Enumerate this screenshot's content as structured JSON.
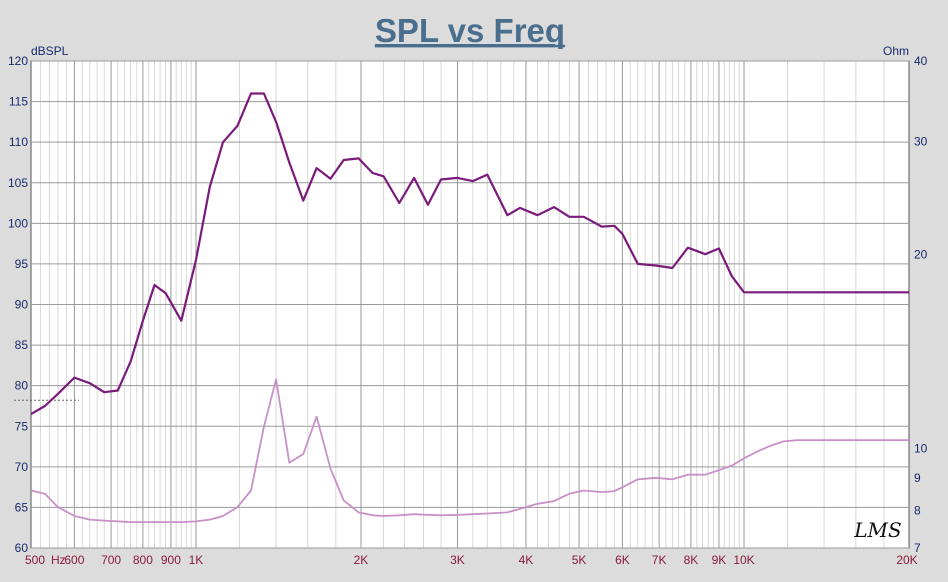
{
  "chart_data": {
    "type": "line",
    "title": "SPL vs Freq",
    "ylabel_left": "dBSPL",
    "ylabel_right": "Ohm",
    "x_unit_label": "Hz",
    "x_scale": "log",
    "xlim": [
      500,
      20000
    ],
    "ylim_left": [
      60,
      120
    ],
    "ylim_right": [
      7,
      40
    ],
    "y_scale_right": "log",
    "grid": true,
    "logo_text": "LMS",
    "x_ticks": [
      {
        "value": 500,
        "label": "500"
      },
      {
        "value": 600,
        "label": "600"
      },
      {
        "value": 700,
        "label": "700"
      },
      {
        "value": 800,
        "label": "800"
      },
      {
        "value": 900,
        "label": "900"
      },
      {
        "value": 1000,
        "label": "1K"
      },
      {
        "value": 2000,
        "label": "2K"
      },
      {
        "value": 3000,
        "label": "3K"
      },
      {
        "value": 4000,
        "label": "4K"
      },
      {
        "value": 5000,
        "label": "5K"
      },
      {
        "value": 6000,
        "label": "6K"
      },
      {
        "value": 7000,
        "label": "7K"
      },
      {
        "value": 8000,
        "label": "8K"
      },
      {
        "value": 9000,
        "label": "9K"
      },
      {
        "value": 10000,
        "label": "10K"
      },
      {
        "value": 20000,
        "label": "20K"
      }
    ],
    "y_left_ticks": [
      60,
      65,
      70,
      75,
      80,
      85,
      90,
      95,
      100,
      105,
      110,
      115,
      120
    ],
    "y_right_ticks": [
      {
        "value": 7,
        "label": "7"
      },
      {
        "value": 8,
        "label": "8"
      },
      {
        "value": 9,
        "label": "9"
      },
      {
        "value": 10,
        "label": "10"
      },
      {
        "value": 20,
        "label": "20"
      },
      {
        "value": 30,
        "label": "30"
      },
      {
        "value": 40,
        "label": "40"
      }
    ],
    "series": [
      {
        "color": "#7a1a7a",
        "axis": "left",
        "x": [
          500,
          530,
          560,
          600,
          640,
          680,
          720,
          760,
          800,
          840,
          880,
          940,
          1000,
          1060,
          1120,
          1190,
          1260,
          1330,
          1400,
          1480,
          1570,
          1660,
          1760,
          1860,
          1980,
          2100,
          2200,
          2350,
          2500,
          2650,
          2800,
          3000,
          3200,
          3400,
          3700,
          3900,
          4200,
          4500,
          4800,
          5100,
          5500,
          5800,
          6000,
          6400,
          6900,
          7400,
          7900,
          8500,
          9000,
          9500,
          10000,
          10600,
          11200,
          11800,
          12500,
          13300,
          14200,
          15000,
          16000,
          17000,
          18000,
          19000,
          20000
        ],
        "y": [
          76.5,
          77.5,
          79.0,
          81.0,
          80.3,
          79.2,
          79.4,
          83.0,
          88.0,
          92.4,
          91.4,
          88.0,
          95.5,
          104.5,
          110.0,
          112.0,
          116.0,
          116.0,
          112.5,
          107.5,
          102.8,
          106.8,
          105.5,
          107.8,
          108.0,
          106.2,
          105.8,
          102.5,
          105.6,
          102.3,
          105.4,
          105.6,
          105.2,
          106.0,
          101.0,
          101.9,
          101.0,
          102.0,
          100.8,
          100.8,
          99.6,
          99.7,
          98.7,
          95.0,
          94.8,
          94.5,
          97.0,
          96.2,
          96.9,
          93.5,
          91.5,
          91.5,
          91.5,
          91.5,
          91.5,
          91.5,
          91.5,
          91.5,
          91.5,
          91.5,
          91.5,
          91.5,
          91.5
        ]
      },
      {
        "color": "#c890c8",
        "axis": "right",
        "x": [
          500,
          530,
          560,
          600,
          640,
          680,
          720,
          760,
          800,
          840,
          880,
          940,
          1000,
          1060,
          1120,
          1190,
          1260,
          1330,
          1400,
          1480,
          1570,
          1660,
          1760,
          1860,
          1980,
          2100,
          2200,
          2350,
          2500,
          2650,
          2800,
          3000,
          3200,
          3400,
          3700,
          3900,
          4200,
          4500,
          4800,
          5100,
          5500,
          5800,
          6000,
          6400,
          6900,
          7400,
          7900,
          8500,
          9000,
          9500,
          10000,
          10600,
          11200,
          11800,
          12500,
          13300,
          14200,
          15000,
          16000,
          17000,
          18000,
          19000,
          20000
        ],
        "y": [
          8.6,
          8.5,
          8.1,
          7.85,
          7.75,
          7.72,
          7.7,
          7.68,
          7.68,
          7.68,
          7.68,
          7.68,
          7.7,
          7.75,
          7.85,
          8.1,
          8.6,
          10.8,
          12.8,
          9.5,
          9.8,
          11.2,
          9.3,
          8.3,
          7.95,
          7.87,
          7.85,
          7.87,
          7.9,
          7.88,
          7.87,
          7.88,
          7.9,
          7.92,
          7.95,
          8.05,
          8.2,
          8.28,
          8.5,
          8.6,
          8.55,
          8.58,
          8.7,
          8.95,
          9.0,
          8.95,
          9.1,
          9.1,
          9.25,
          9.4,
          9.65,
          9.9,
          10.1,
          10.25,
          10.3,
          10.3,
          10.3,
          10.3,
          10.3,
          10.3,
          10.3,
          10.3,
          10.3
        ]
      }
    ]
  }
}
